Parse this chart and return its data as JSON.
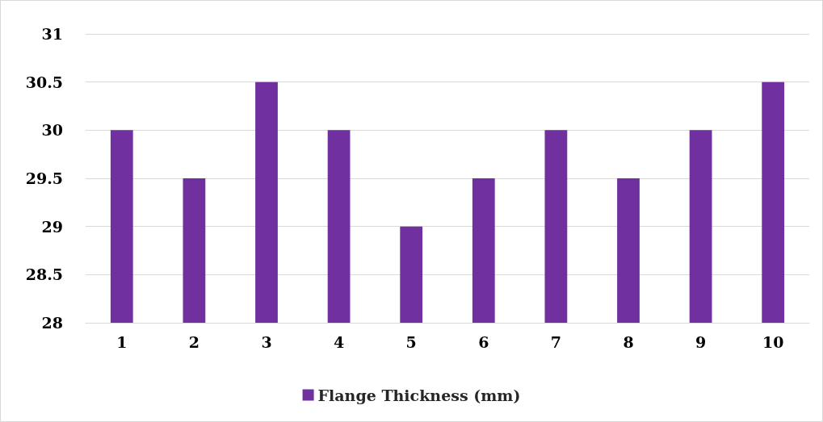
{
  "chart_data": {
    "type": "bar",
    "categories": [
      "1",
      "2",
      "3",
      "4",
      "5",
      "6",
      "7",
      "8",
      "9",
      "10"
    ],
    "series": [
      {
        "name": "Flange Thickness (mm)",
        "color": "#7030a0",
        "values": [
          30,
          29.5,
          30.5,
          30,
          29,
          29.5,
          30,
          29.5,
          30,
          30.5
        ]
      }
    ],
    "ylim": [
      28,
      31
    ],
    "yticks": [
      28,
      28.5,
      29,
      29.5,
      30,
      30.5,
      31
    ],
    "grid": "y",
    "legend": "bottom"
  }
}
